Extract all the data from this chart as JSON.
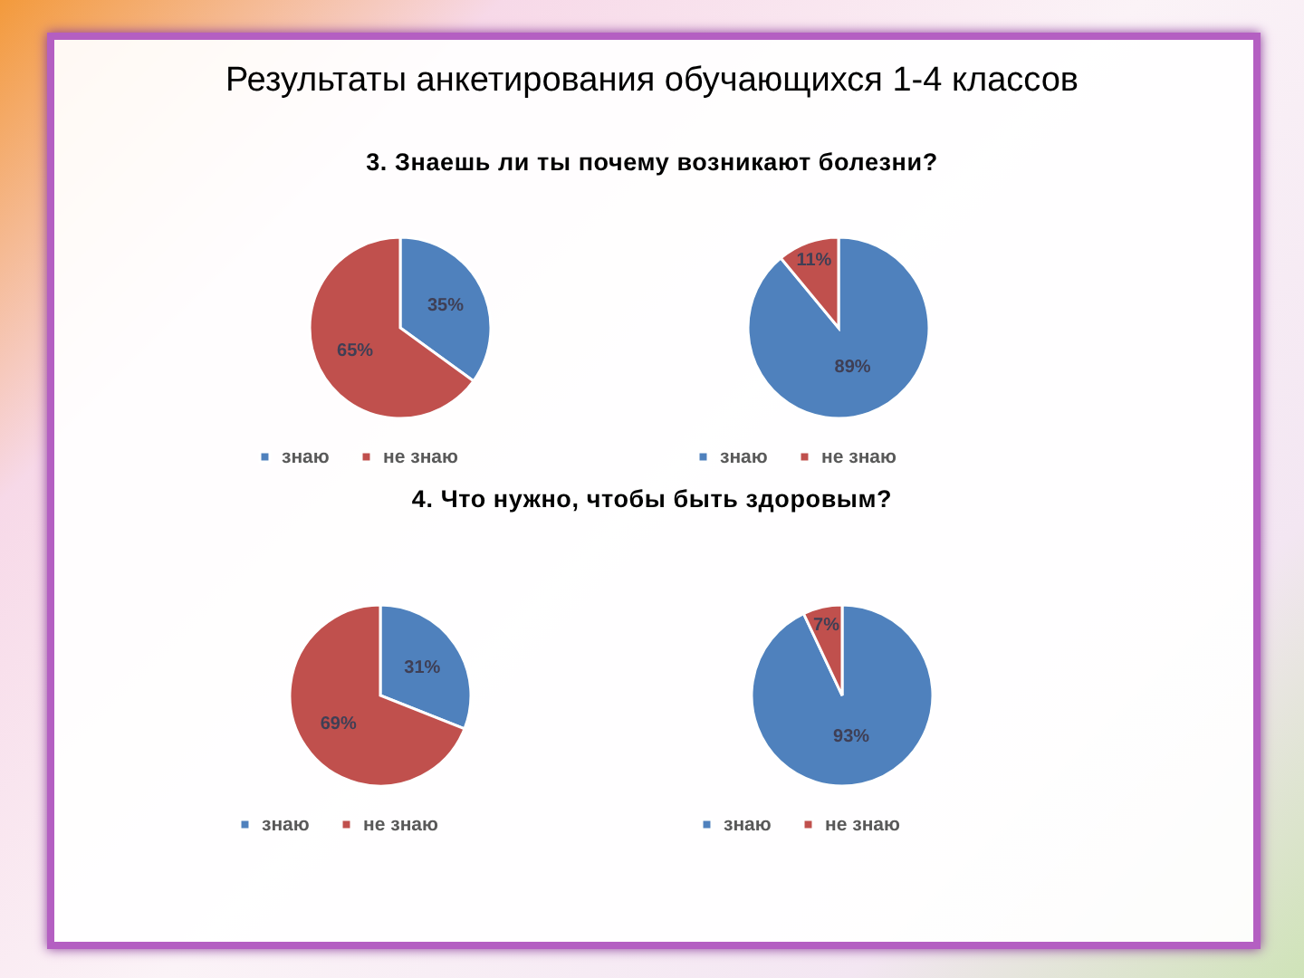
{
  "chart_data": [
    {
      "type": "pie",
      "title": "Результаты анкетирования обучающихся 1-4 классов",
      "subtitle": "3. Знаешь ли ты почему возникают болезни?",
      "categories": [
        "знаю",
        "не знаю"
      ],
      "values": [
        35,
        65
      ],
      "value_labels": [
        "35%",
        "65%"
      ],
      "colors": [
        "#4f81bd",
        "#c0504d"
      ],
      "legend": "bottom"
    },
    {
      "type": "pie",
      "categories": [
        "знаю",
        "не знаю"
      ],
      "values": [
        89,
        11
      ],
      "value_labels": [
        "89%",
        "11%"
      ],
      "colors": [
        "#4f81bd",
        "#c0504d"
      ],
      "legend": "bottom"
    },
    {
      "type": "pie",
      "title": "4. Что нужно, чтобы быть здоровым?",
      "categories": [
        "знаю",
        "не знаю"
      ],
      "values": [
        31,
        69
      ],
      "value_labels": [
        "31%",
        "69%"
      ],
      "colors": [
        "#4f81bd",
        "#c0504d"
      ],
      "legend": "bottom"
    },
    {
      "type": "pie",
      "categories": [
        "знаю",
        "не знаю"
      ],
      "values": [
        93,
        7
      ],
      "value_labels": [
        "93%",
        "7%"
      ],
      "colors": [
        "#4f81bd",
        "#c0504d"
      ],
      "legend": "bottom"
    }
  ]
}
